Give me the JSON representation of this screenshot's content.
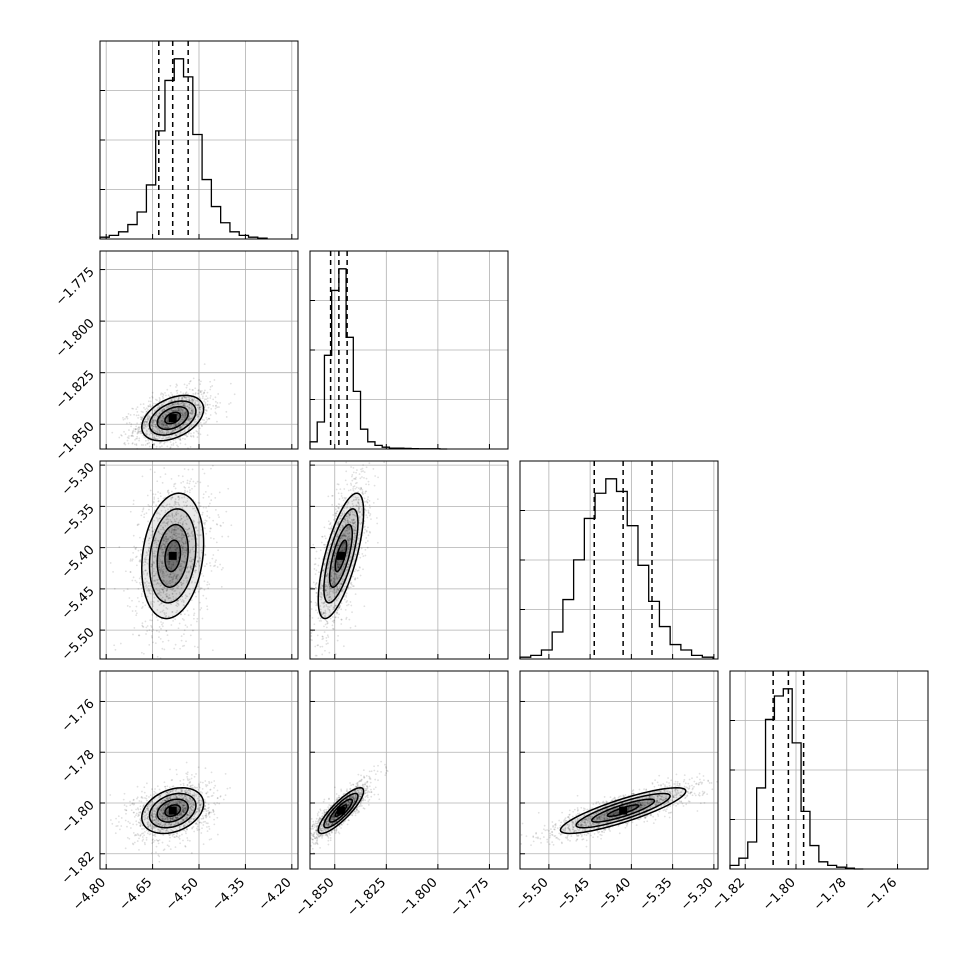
{
  "chart_data": {
    "type": "corner",
    "n_params": 4,
    "params": [
      {
        "index": 0,
        "center": -4.585,
        "sigma": 0.05,
        "range": [
          -4.82,
          -4.18
        ],
        "ticks": [
          -4.8,
          -4.65,
          -4.5,
          -4.35,
          -4.2
        ],
        "tick_labels": [
          "−4.80",
          "−4.65",
          "−4.50",
          "−4.35",
          "−4.20"
        ],
        "quantiles": [
          -4.63,
          -4.585,
          -4.535
        ]
      },
      {
        "index": 1,
        "center": -1.847,
        "sigma": 0.0055,
        "range": [
          -1.862,
          -1.766
        ],
        "ticks": [
          -1.85,
          -1.825,
          -1.8,
          -1.775
        ],
        "tick_labels": [
          "−1.850",
          "−1.825",
          "−1.800",
          "−1.775"
        ],
        "quantiles": [
          -1.852,
          -1.848,
          -1.844
        ]
      },
      {
        "index": 2,
        "center": -5.41,
        "sigma": 0.038,
        "range": [
          -5.535,
          -5.295
        ],
        "ticks": [
          -5.3,
          -5.35,
          -5.4,
          -5.45,
          -5.5
        ],
        "tick_labels": [
          "−5.30",
          "−5.35",
          "−5.40",
          "−5.45",
          "−5.50"
        ],
        "quantiles": [
          -5.445,
          -5.41,
          -5.375
        ]
      },
      {
        "index": 3,
        "center": -1.803,
        "sigma": 0.0045,
        "range": [
          -1.826,
          -1.748
        ],
        "ticks": [
          -1.76,
          -1.78,
          -1.8,
          -1.82
        ],
        "tick_labels": [
          "−1.76",
          "−1.78",
          "−1.80",
          "−1.82"
        ],
        "quantiles": [
          -1.809,
          -1.803,
          -1.797
        ]
      }
    ],
    "histograms": [
      {
        "param": 0,
        "bin_edges": [
          -4.82,
          -4.79,
          -4.76,
          -4.73,
          -4.7,
          -4.67,
          -4.64,
          -4.61,
          -4.58,
          -4.55,
          -4.52,
          -4.49,
          -4.46,
          -4.43,
          -4.4,
          -4.37,
          -4.34,
          -4.31,
          -4.28
        ],
        "counts": [
          0.01,
          0.02,
          0.04,
          0.08,
          0.15,
          0.3,
          0.6,
          0.88,
          1.0,
          0.9,
          0.58,
          0.33,
          0.18,
          0.09,
          0.04,
          0.02,
          0.01,
          0.005
        ]
      },
      {
        "param": 1,
        "bin_edges": [
          -1.862,
          -1.8585,
          -1.855,
          -1.8515,
          -1.848,
          -1.8445,
          -1.841,
          -1.8375,
          -1.834,
          -1.8305,
          -1.827,
          -1.8235,
          -1.82,
          -1.8165,
          -1.813,
          -1.8095,
          -1.806,
          -1.8025,
          -1.799,
          -1.7955
        ],
        "counts": [
          0.04,
          0.15,
          0.52,
          0.88,
          1.0,
          0.62,
          0.32,
          0.11,
          0.04,
          0.02,
          0.01,
          0.005,
          0.005,
          0.003,
          0.002,
          0.001,
          0.001,
          0.001,
          0.0
        ]
      },
      {
        "param": 2,
        "bin_edges": [
          -5.535,
          -5.522,
          -5.509,
          -5.496,
          -5.483,
          -5.47,
          -5.457,
          -5.444,
          -5.431,
          -5.418,
          -5.405,
          -5.392,
          -5.379,
          -5.366,
          -5.353,
          -5.34,
          -5.327,
          -5.314,
          -5.301
        ],
        "counts": [
          0.01,
          0.02,
          0.05,
          0.15,
          0.33,
          0.55,
          0.78,
          0.92,
          1.0,
          0.93,
          0.74,
          0.52,
          0.32,
          0.18,
          0.08,
          0.05,
          0.02,
          0.01
        ]
      },
      {
        "param": 3,
        "bin_edges": [
          -1.826,
          -1.8225,
          -1.819,
          -1.8155,
          -1.812,
          -1.8085,
          -1.805,
          -1.8015,
          -1.798,
          -1.7945,
          -1.791,
          -1.7875,
          -1.784,
          -1.7805,
          -1.777,
          -1.7735
        ],
        "counts": [
          0.02,
          0.06,
          0.15,
          0.45,
          0.83,
          0.96,
          1.0,
          0.7,
          0.32,
          0.13,
          0.04,
          0.02,
          0.01,
          0.005,
          0.0
        ]
      }
    ],
    "pairs": [
      {
        "x_param": 0,
        "y_param": 1,
        "correlation": 0.4
      },
      {
        "x_param": 0,
        "y_param": 2,
        "correlation": 0.2
      },
      {
        "x_param": 1,
        "y_param": 2,
        "correlation": 0.7
      },
      {
        "x_param": 0,
        "y_param": 3,
        "correlation": 0.3
      },
      {
        "x_param": 1,
        "y_param": 3,
        "correlation": 0.85
      },
      {
        "x_param": 2,
        "y_param": 3,
        "correlation": 0.85
      }
    ],
    "contour_levels_sigma": [
      0.5,
      1.0,
      1.5,
      2.0
    ],
    "grid": true,
    "title": "",
    "xlabel": "",
    "ylabel": "",
    "colors": {
      "line": "#000000",
      "grid": "#b0b0b0",
      "points": "#000000",
      "background": "#ffffff"
    }
  }
}
